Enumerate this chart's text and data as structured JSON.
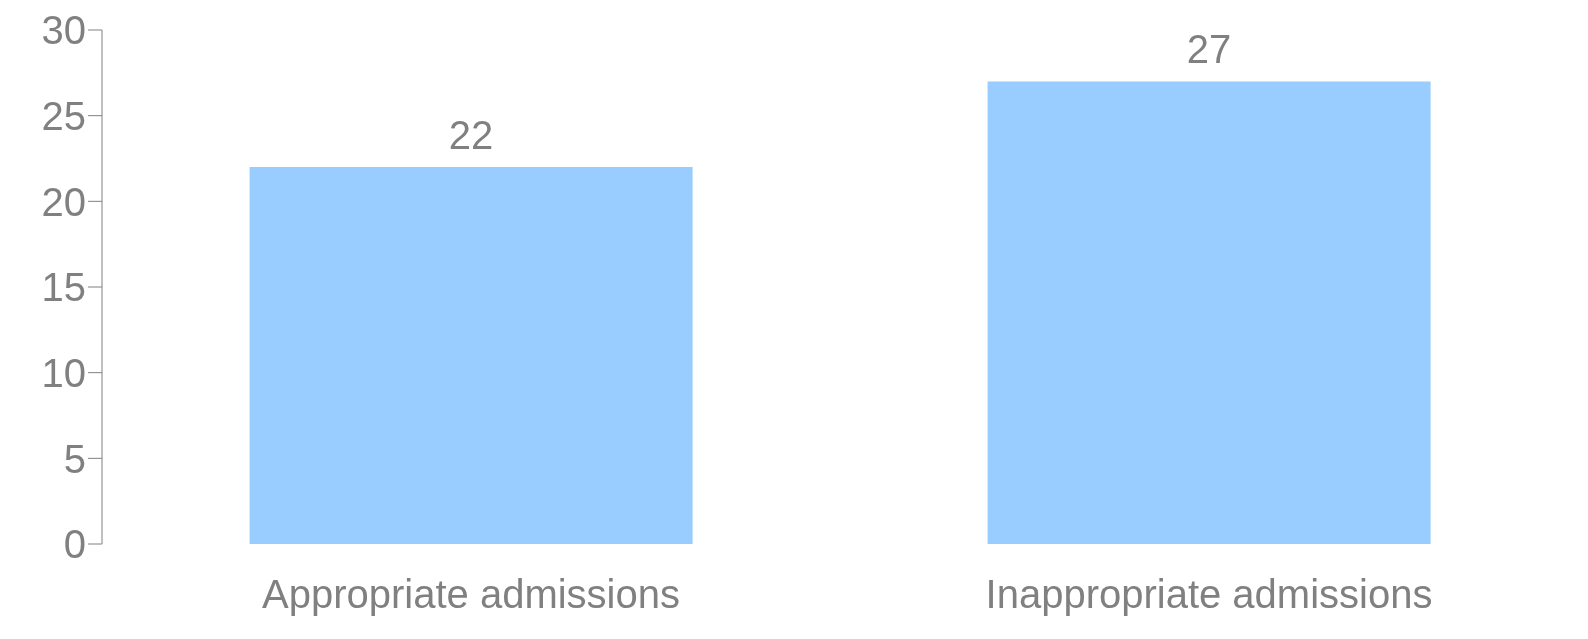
{
  "chart_data": {
    "type": "bar",
    "categories": [
      "Appropriate admissions",
      "Inappropriate admissions"
    ],
    "values": [
      22,
      27
    ],
    "color": "#99ccff",
    "ylim": [
      0,
      30
    ],
    "yticks": [
      0,
      5,
      10,
      15,
      20,
      25,
      30
    ],
    "grid": false,
    "data_labels": true
  }
}
